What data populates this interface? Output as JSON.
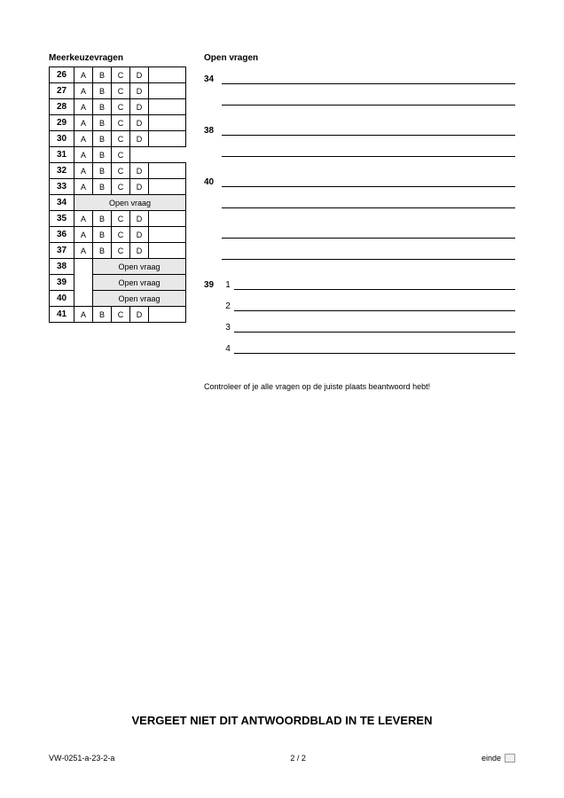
{
  "titles": {
    "left": "Meerkeuzevragen",
    "right": "Open vragen"
  },
  "mc": {
    "options": [
      "A",
      "B",
      "C",
      "D"
    ],
    "open_label": "Open vraag",
    "rows": [
      {
        "n": 26,
        "type": "mc4e"
      },
      {
        "n": 27,
        "type": "mc4"
      },
      {
        "n": 28,
        "type": "mc4"
      },
      {
        "n": 29,
        "type": "mc4"
      },
      {
        "n": 30,
        "type": "mc4e"
      },
      {
        "n": 31,
        "type": "mc3"
      },
      {
        "n": 32,
        "type": "mc4e"
      },
      {
        "n": 33,
        "type": "mc4e"
      },
      {
        "n": 34,
        "type": "open"
      },
      {
        "n": 35,
        "type": "mc4e"
      },
      {
        "n": 36,
        "type": "mc4e"
      },
      {
        "n": 37,
        "type": "mc4"
      },
      {
        "n": 38,
        "type": "open_r"
      },
      {
        "n": 39,
        "type": "open_r"
      },
      {
        "n": 40,
        "type": "open_r"
      },
      {
        "n": 41,
        "type": "mc4e"
      }
    ]
  },
  "open": {
    "items": [
      {
        "n": "34",
        "lines": 2
      },
      {
        "n": "38",
        "lines": 2
      },
      {
        "n": "40",
        "lines": 2
      },
      {
        "n": "",
        "blank_lines": 2
      },
      {
        "n": "39",
        "subs": [
          {
            "sub": "1",
            "lines": 1
          },
          {
            "sub": "2",
            "lines": 1
          },
          {
            "sub": "3",
            "lines": 1
          },
          {
            "sub": "4",
            "lines": 1
          }
        ]
      }
    ]
  },
  "note": "Controleer of je alle vragen op de juiste plaats beantwoord hebt!",
  "reminder": "VERGEET NIET DIT ANTWOORDBLAD IN TE LEVEREN",
  "footer": {
    "left": "VW-0251-a-23-2-a",
    "center": "2 / 2",
    "right": "einde"
  },
  "colors": {
    "text": "#000000",
    "bg": "#ffffff",
    "open_bg": "#e8e8e8"
  }
}
